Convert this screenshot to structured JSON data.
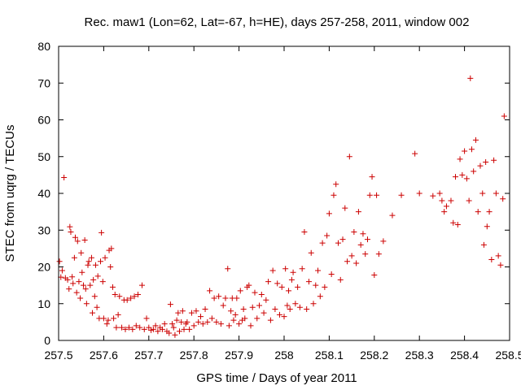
{
  "chart_data": {
    "type": "scatter",
    "title": "Rec. maw1 (Lon=62, Lat=-67, h=HE), days 257-258, 2011, window 002",
    "xlabel": "GPS time / Days of year 2011",
    "ylabel": "STEC from uqrg / TECUs",
    "xlim": [
      257.5,
      258.5
    ],
    "ylim": [
      0,
      80
    ],
    "xticks": [
      257.5,
      257.6,
      257.7,
      257.8,
      257.9,
      258.0,
      258.1,
      258.2,
      258.3,
      258.4,
      258.5
    ],
    "xtick_labels": [
      "257.5",
      "257.6",
      "257.7",
      "257.8",
      "257.9",
      "258",
      "258.1",
      "258.2",
      "258.3",
      "258.4",
      "258.5"
    ],
    "yticks": [
      0,
      10,
      20,
      30,
      40,
      50,
      60,
      70,
      80
    ],
    "ytick_labels": [
      "0",
      "10",
      "20",
      "30",
      "40",
      "50",
      "60",
      "70",
      "80"
    ],
    "marker": "+",
    "color": "#cc0000",
    "series": [
      {
        "name": "STEC",
        "points": [
          [
            257.502,
            21.5
          ],
          [
            257.505,
            17.2
          ],
          [
            257.508,
            19.0
          ],
          [
            257.512,
            44.3
          ],
          [
            257.515,
            17.0
          ],
          [
            257.52,
            16.5
          ],
          [
            257.523,
            14.0
          ],
          [
            257.525,
            30.9
          ],
          [
            257.527,
            29.5
          ],
          [
            257.53,
            17.3
          ],
          [
            257.532,
            15.5
          ],
          [
            257.535,
            22.5
          ],
          [
            257.537,
            28.0
          ],
          [
            257.54,
            13.0
          ],
          [
            257.542,
            27.0
          ],
          [
            257.545,
            16.0
          ],
          [
            257.548,
            11.5
          ],
          [
            257.55,
            23.8
          ],
          [
            257.552,
            18.5
          ],
          [
            257.555,
            15.0
          ],
          [
            257.558,
            27.3
          ],
          [
            257.56,
            14.0
          ],
          [
            257.562,
            10.0
          ],
          [
            257.565,
            20.5
          ],
          [
            257.567,
            21.5
          ],
          [
            257.57,
            15.0
          ],
          [
            257.573,
            22.5
          ],
          [
            257.575,
            7.5
          ],
          [
            257.577,
            16.5
          ],
          [
            257.58,
            12.0
          ],
          [
            257.582,
            20.5
          ],
          [
            257.585,
            9.0
          ],
          [
            257.587,
            17.5
          ],
          [
            257.59,
            6.0
          ],
          [
            257.593,
            21.5
          ],
          [
            257.595,
            29.3
          ],
          [
            257.598,
            16.0
          ],
          [
            257.6,
            6.0
          ],
          [
            257.603,
            22.5
          ],
          [
            257.607,
            4.5
          ],
          [
            257.61,
            5.5
          ],
          [
            257.612,
            24.5
          ],
          [
            257.615,
            20.0
          ],
          [
            257.617,
            25.0
          ],
          [
            257.62,
            14.5
          ],
          [
            257.622,
            6.0
          ],
          [
            257.625,
            12.5
          ],
          [
            257.628,
            3.5
          ],
          [
            257.632,
            7.0
          ],
          [
            257.635,
            12.0
          ],
          [
            257.64,
            3.5
          ],
          [
            257.645,
            11.0
          ],
          [
            257.648,
            3.0
          ],
          [
            257.652,
            11.0
          ],
          [
            257.656,
            3.5
          ],
          [
            257.66,
            11.5
          ],
          [
            257.664,
            3.0
          ],
          [
            257.668,
            12.0
          ],
          [
            257.672,
            4.0
          ],
          [
            257.676,
            12.5
          ],
          [
            257.68,
            3.5
          ],
          [
            257.685,
            15.0
          ],
          [
            257.69,
            3.0
          ],
          [
            257.695,
            6.0
          ],
          [
            257.7,
            3.5
          ],
          [
            257.705,
            2.8
          ],
          [
            257.71,
            3.0
          ],
          [
            257.715,
            4.0
          ],
          [
            257.72,
            2.5
          ],
          [
            257.725,
            3.5
          ],
          [
            257.73,
            3.0
          ],
          [
            257.735,
            4.5
          ],
          [
            257.74,
            2.5
          ],
          [
            257.745,
            2.0
          ],
          [
            257.748,
            9.8
          ],
          [
            257.752,
            4.5
          ],
          [
            257.755,
            3.5
          ],
          [
            257.758,
            1.5
          ],
          [
            257.762,
            5.5
          ],
          [
            257.765,
            7.5
          ],
          [
            257.768,
            2.5
          ],
          [
            257.772,
            5.0
          ],
          [
            257.775,
            8.0
          ],
          [
            257.778,
            3.0
          ],
          [
            257.782,
            4.5
          ],
          [
            257.785,
            5.0
          ],
          [
            257.79,
            3.0
          ],
          [
            257.795,
            7.5
          ],
          [
            257.8,
            4.0
          ],
          [
            257.805,
            8.0
          ],
          [
            257.81,
            5.0
          ],
          [
            257.815,
            6.5
          ],
          [
            257.82,
            4.5
          ],
          [
            257.825,
            8.5
          ],
          [
            257.83,
            5.0
          ],
          [
            257.835,
            13.5
          ],
          [
            257.84,
            6.0
          ],
          [
            257.845,
            11.5
          ],
          [
            257.85,
            5.0
          ],
          [
            257.855,
            12.0
          ],
          [
            257.86,
            4.5
          ],
          [
            257.865,
            9.5
          ],
          [
            257.87,
            11.5
          ],
          [
            257.875,
            19.5
          ],
          [
            257.878,
            4.0
          ],
          [
            257.882,
            8.0
          ],
          [
            257.885,
            11.5
          ],
          [
            257.888,
            5.5
          ],
          [
            257.892,
            7.0
          ],
          [
            257.895,
            11.5
          ],
          [
            257.9,
            4.5
          ],
          [
            257.903,
            13.5
          ],
          [
            257.907,
            5.5
          ],
          [
            257.91,
            8.5
          ],
          [
            257.913,
            6.0
          ],
          [
            257.918,
            14.5
          ],
          [
            257.922,
            15.0
          ],
          [
            257.926,
            4.0
          ],
          [
            257.93,
            9.0
          ],
          [
            257.935,
            13.0
          ],
          [
            257.94,
            6.0
          ],
          [
            257.945,
            9.5
          ],
          [
            257.95,
            12.5
          ],
          [
            257.955,
            7.5
          ],
          [
            257.96,
            11.0
          ],
          [
            257.965,
            16.0
          ],
          [
            257.97,
            5.5
          ],
          [
            257.975,
            19.0
          ],
          [
            257.98,
            8.5
          ],
          [
            257.985,
            15.5
          ],
          [
            257.99,
            7.0
          ],
          [
            257.995,
            14.5
          ],
          [
            258.0,
            6.5
          ],
          [
            258.003,
            19.5
          ],
          [
            258.007,
            9.5
          ],
          [
            258.01,
            13.5
          ],
          [
            258.013,
            8.5
          ],
          [
            258.017,
            16.5
          ],
          [
            258.02,
            18.5
          ],
          [
            258.025,
            10.0
          ],
          [
            258.03,
            14.5
          ],
          [
            258.035,
            9.0
          ],
          [
            258.04,
            19.5
          ],
          [
            258.045,
            29.5
          ],
          [
            258.05,
            8.5
          ],
          [
            258.055,
            16.0
          ],
          [
            258.06,
            23.8
          ],
          [
            258.065,
            10.0
          ],
          [
            258.07,
            15.0
          ],
          [
            258.075,
            19.0
          ],
          [
            258.08,
            12.0
          ],
          [
            258.085,
            26.5
          ],
          [
            258.09,
            14.5
          ],
          [
            258.095,
            28.5
          ],
          [
            258.1,
            34.5
          ],
          [
            258.105,
            18.0
          ],
          [
            258.11,
            39.5
          ],
          [
            258.115,
            42.5
          ],
          [
            258.12,
            26.5
          ],
          [
            258.125,
            16.5
          ],
          [
            258.13,
            27.5
          ],
          [
            258.135,
            36.0
          ],
          [
            258.14,
            21.5
          ],
          [
            258.145,
            50.0
          ],
          [
            258.15,
            23.0
          ],
          [
            258.155,
            29.5
          ],
          [
            258.16,
            21.0
          ],
          [
            258.165,
            35.0
          ],
          [
            258.17,
            26.0
          ],
          [
            258.175,
            29.0
          ],
          [
            258.18,
            23.5
          ],
          [
            258.185,
            27.5
          ],
          [
            258.19,
            39.5
          ],
          [
            258.195,
            44.5
          ],
          [
            258.2,
            17.8
          ],
          [
            258.205,
            39.5
          ],
          [
            258.21,
            23.5
          ],
          [
            258.22,
            27.0
          ],
          [
            258.24,
            34.0
          ],
          [
            258.26,
            39.5
          ],
          [
            258.29,
            50.8
          ],
          [
            258.3,
            40.0
          ],
          [
            258.33,
            39.3
          ],
          [
            258.345,
            40.0
          ],
          [
            258.35,
            38.0
          ],
          [
            258.355,
            35.0
          ],
          [
            258.36,
            36.5
          ],
          [
            258.37,
            38.0
          ],
          [
            258.375,
            32.0
          ],
          [
            258.38,
            44.5
          ],
          [
            258.385,
            31.5
          ],
          [
            258.39,
            49.3
          ],
          [
            258.395,
            45.0
          ],
          [
            258.4,
            51.5
          ],
          [
            258.405,
            44.0
          ],
          [
            258.41,
            38.0
          ],
          [
            258.413,
            71.3
          ],
          [
            258.416,
            52.0
          ],
          [
            258.42,
            46.0
          ],
          [
            258.425,
            54.5
          ],
          [
            258.43,
            35.0
          ],
          [
            258.435,
            47.5
          ],
          [
            258.44,
            40.0
          ],
          [
            258.443,
            26.0
          ],
          [
            258.447,
            48.5
          ],
          [
            258.45,
            31.0
          ],
          [
            258.455,
            35.0
          ],
          [
            258.46,
            22.0
          ],
          [
            258.465,
            49.0
          ],
          [
            258.47,
            40.0
          ],
          [
            258.475,
            23.0
          ],
          [
            258.48,
            20.5
          ],
          [
            258.485,
            38.5
          ],
          [
            258.488,
            61.0
          ]
        ]
      }
    ]
  }
}
